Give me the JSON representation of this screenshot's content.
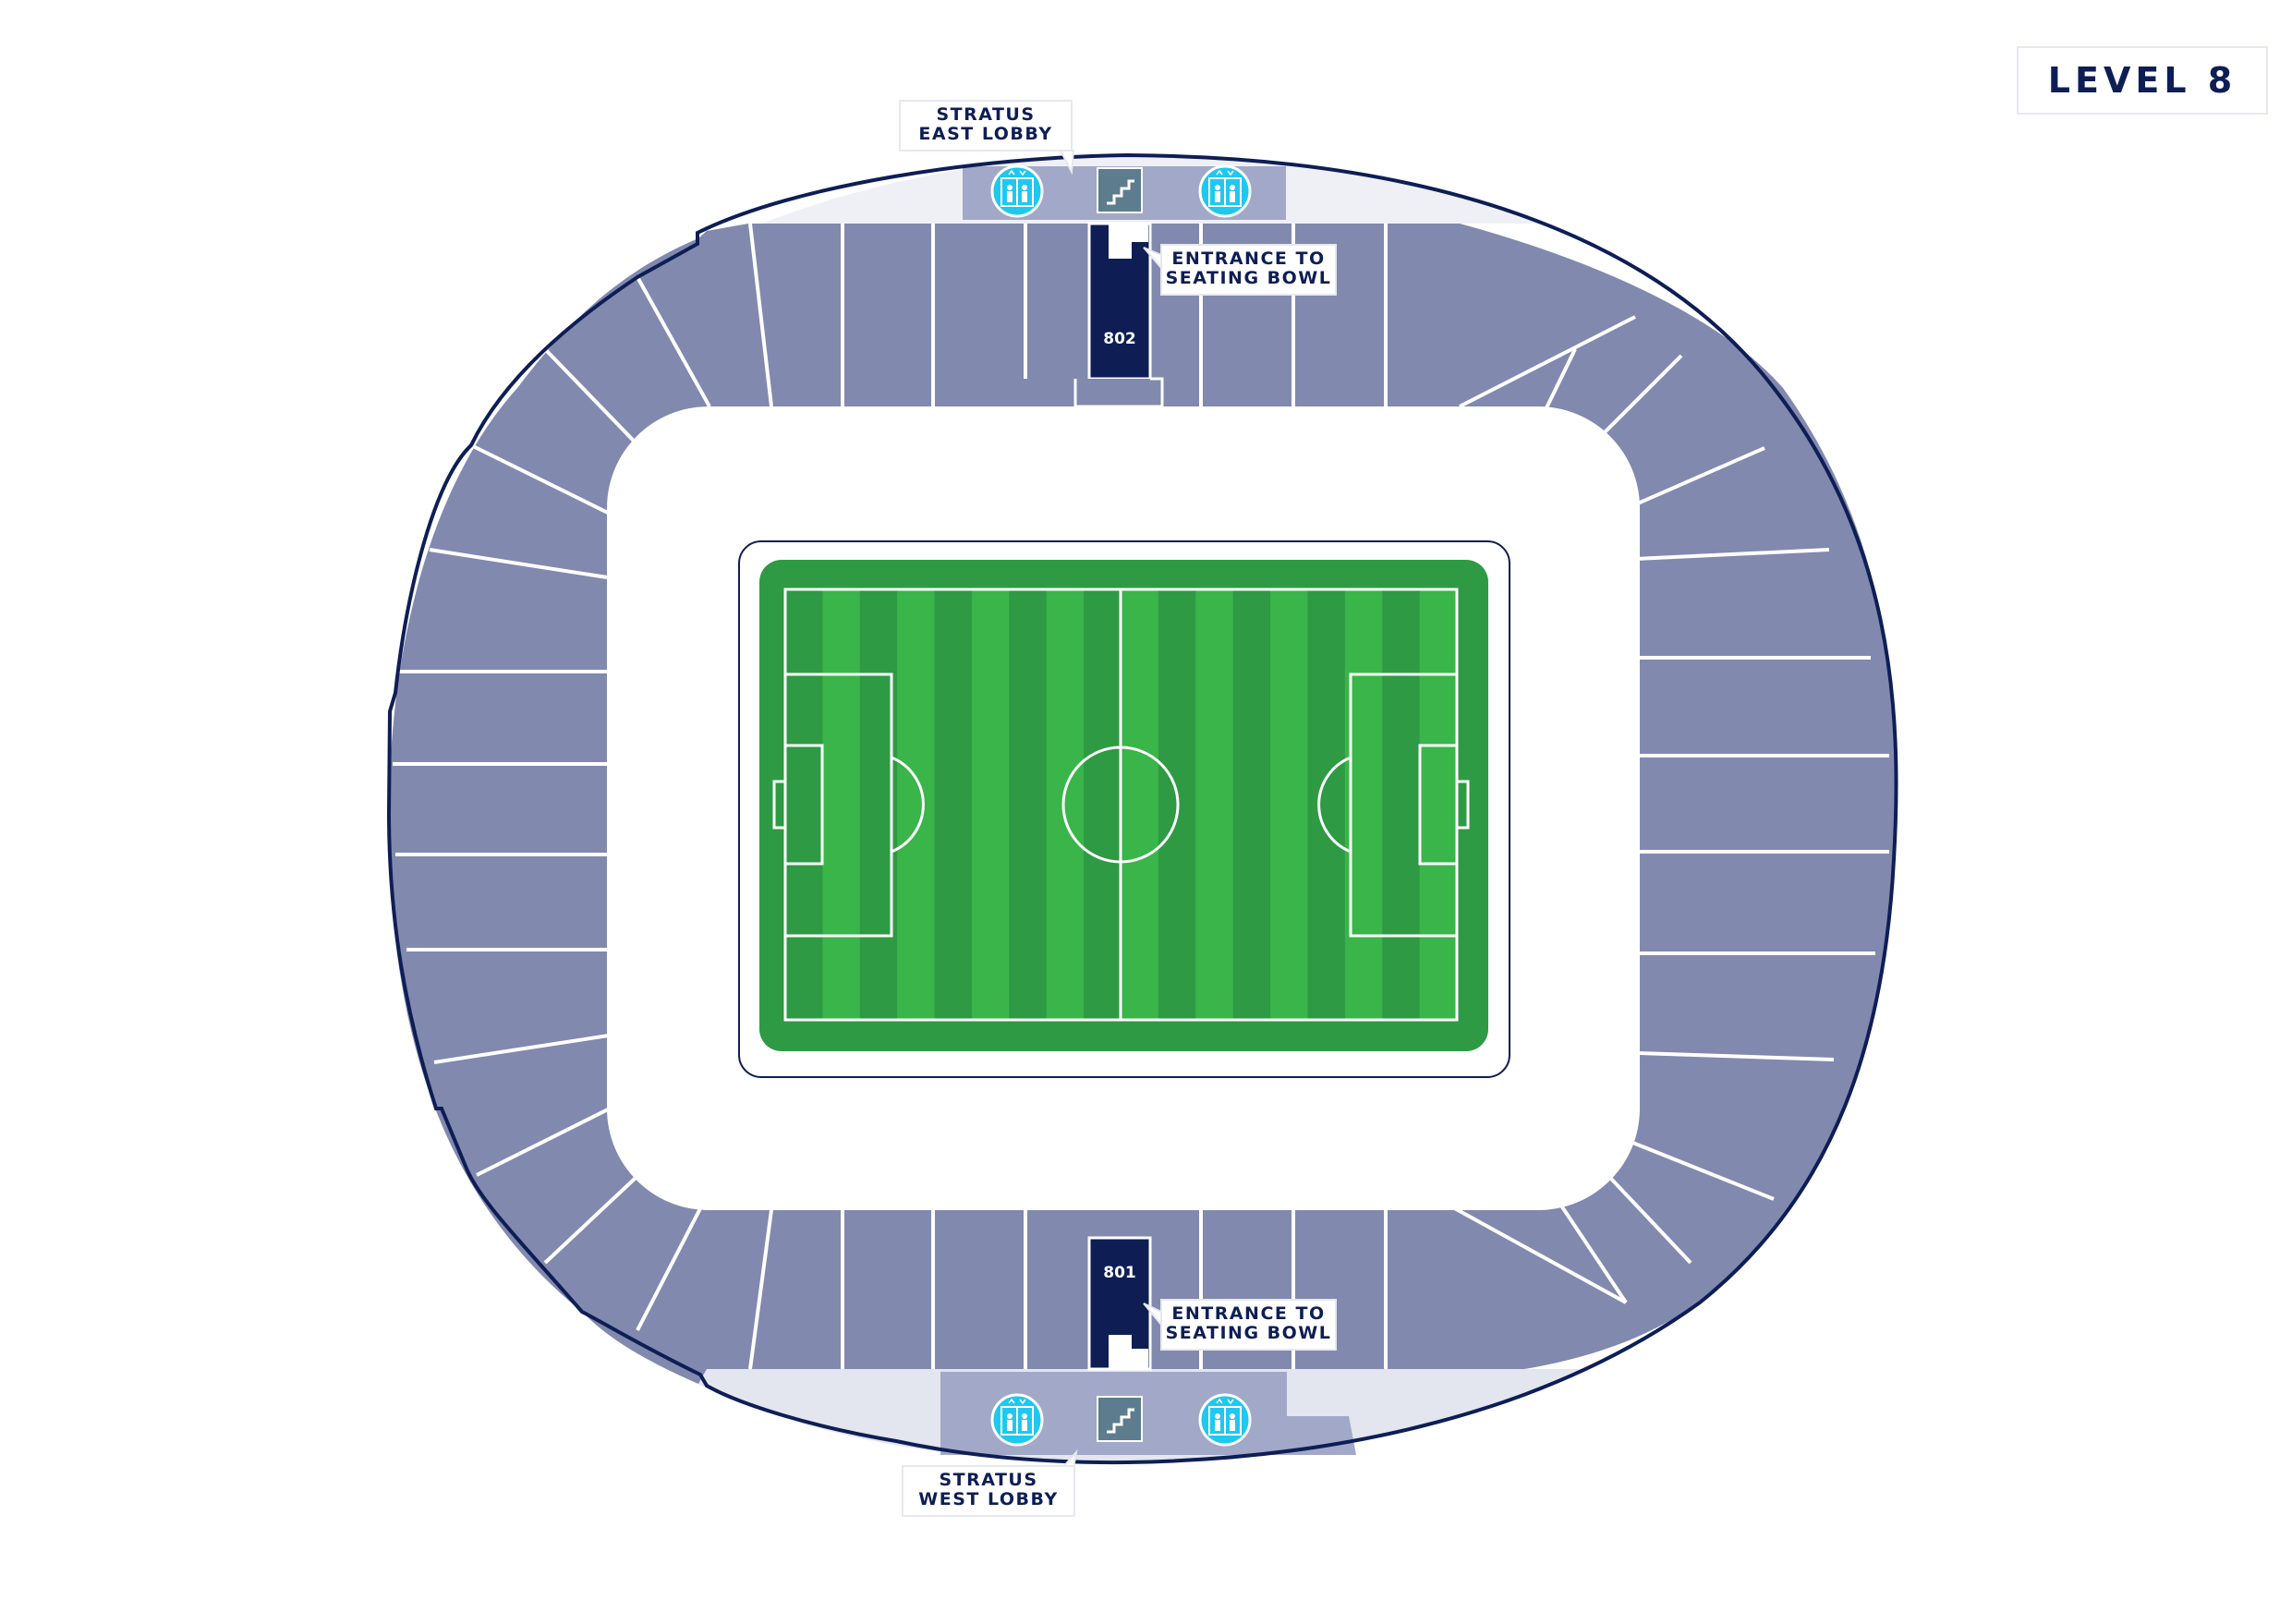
{
  "level": {
    "title": "LEVEL 8"
  },
  "lobbies": {
    "east": {
      "line1": "STRATUS",
      "line2": "EAST LOBBY"
    },
    "west": {
      "line1": "STRATUS",
      "line2": "WEST LOBBY"
    }
  },
  "entrances": {
    "top": {
      "section": "802",
      "line1": "ENTRANCE TO",
      "line2": "SEATING BOWL"
    },
    "bottom": {
      "section": "801",
      "line1": "ENTRANCE TO",
      "line2": "SEATING BOWL"
    }
  },
  "icons": {
    "lift": "lift-icon",
    "stairs": "stairs-icon"
  },
  "colors": {
    "seat": "#8189ae",
    "outline": "#0e1e55",
    "lobby": "#a2a8c8",
    "concourse": "#e3e5ef",
    "entrance": "#0e1e55",
    "lift": "#1ec8ef",
    "stairs": "#5d7d8f",
    "pitch_dark": "#2e9a44",
    "pitch_light": "#39b54a"
  }
}
